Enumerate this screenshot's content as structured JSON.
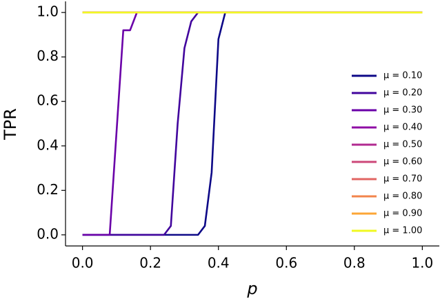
{
  "chart_data": {
    "type": "line",
    "xlabel": "p",
    "ylabel": "TPR",
    "x": [
      0,
      0.08,
      0.1,
      0.12,
      0.14,
      0.16,
      0.24,
      0.26,
      0.28,
      0.3,
      0.32,
      0.34,
      0.36,
      0.38,
      0.4,
      0.42,
      1.0
    ],
    "series": [
      {
        "name": "μ = 0.10",
        "color": "#0d0887",
        "values": [
          0,
          0,
          0,
          0,
          0,
          0,
          0,
          0,
          0,
          0,
          0,
          0,
          0.04,
          0.28,
          0.88,
          1.0,
          1.0
        ]
      },
      {
        "name": "μ = 0.20",
        "color": "#41049d",
        "values": [
          0,
          0,
          0,
          0,
          0,
          0,
          0,
          0.04,
          0.5,
          0.84,
          0.96,
          1.0,
          1.0,
          1.0,
          1.0,
          1.0,
          1.0
        ]
      },
      {
        "name": "μ = 0.30",
        "color": "#6a00a8",
        "values": [
          0,
          0,
          0.46,
          0.92,
          0.92,
          1.0,
          1.0,
          1.0,
          1.0,
          1.0,
          1.0,
          1.0,
          1.0,
          1.0,
          1.0,
          1.0,
          1.0
        ]
      },
      {
        "name": "μ = 0.40",
        "color": "#8f0da4",
        "values": [
          1,
          1,
          1,
          1,
          1,
          1,
          1,
          1,
          1,
          1,
          1,
          1,
          1,
          1,
          1,
          1,
          1
        ]
      },
      {
        "name": "μ = 0.50",
        "color": "#b12a90",
        "values": [
          1,
          1,
          1,
          1,
          1,
          1,
          1,
          1,
          1,
          1,
          1,
          1,
          1,
          1,
          1,
          1,
          1
        ]
      },
      {
        "name": "μ = 0.60",
        "color": "#cc4778",
        "values": [
          1,
          1,
          1,
          1,
          1,
          1,
          1,
          1,
          1,
          1,
          1,
          1,
          1,
          1,
          1,
          1,
          1
        ]
      },
      {
        "name": "μ = 0.70",
        "color": "#e16462",
        "values": [
          1,
          1,
          1,
          1,
          1,
          1,
          1,
          1,
          1,
          1,
          1,
          1,
          1,
          1,
          1,
          1,
          1
        ]
      },
      {
        "name": "μ = 0.80",
        "color": "#f2844b",
        "values": [
          1,
          1,
          1,
          1,
          1,
          1,
          1,
          1,
          1,
          1,
          1,
          1,
          1,
          1,
          1,
          1,
          1
        ]
      },
      {
        "name": "μ = 0.90",
        "color": "#fca636",
        "values": [
          1,
          1,
          1,
          1,
          1,
          1,
          1,
          1,
          1,
          1,
          1,
          1,
          1,
          1,
          1,
          1,
          1
        ]
      },
      {
        "name": "μ = 1.00",
        "color": "#f0f921",
        "values": [
          1,
          1,
          1,
          1,
          1,
          1,
          1,
          1,
          1,
          1,
          1,
          1,
          1,
          1,
          1,
          1,
          1
        ]
      }
    ],
    "xlim": [
      -0.05,
      1.05
    ],
    "ylim": [
      -0.05,
      1.05
    ],
    "xticks": [
      {
        "value": 0,
        "label": "0.0"
      },
      {
        "value": 0.2,
        "label": "0.2"
      },
      {
        "value": 0.4,
        "label": "0.4"
      },
      {
        "value": 0.6,
        "label": "0.6"
      },
      {
        "value": 0.8,
        "label": "0.8"
      },
      {
        "value": 1.0,
        "label": "1.0"
      }
    ],
    "yticks": [
      {
        "value": 0,
        "label": "0.0"
      },
      {
        "value": 0.2,
        "label": "0.2"
      },
      {
        "value": 0.4,
        "label": "0.4"
      },
      {
        "value": 0.6,
        "label": "0.6"
      },
      {
        "value": 0.8,
        "label": "0.8"
      },
      {
        "value": 1.0,
        "label": "1.0"
      }
    ],
    "grid": false,
    "legend": "right"
  }
}
